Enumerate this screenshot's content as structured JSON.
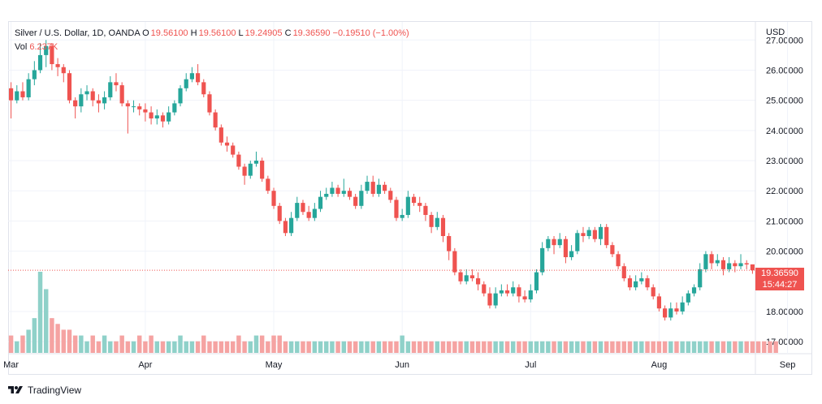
{
  "legend": {
    "symbol": "Silver / U.S. Dollar, 1D, OANDA",
    "o_label": "O",
    "o_value": "19.56100",
    "h_label": "H",
    "h_value": "19.56100",
    "l_label": "L",
    "l_value": "19.24905",
    "c_label": "C",
    "c_value": "19.36590",
    "change": "−0.19510 (−1.00%)",
    "vol_label": "Vol",
    "vol_value": "6.237K"
  },
  "price_tag": {
    "price": "19.36590",
    "countdown": "15:44:27"
  },
  "footer": {
    "brand": "TradingView"
  },
  "colors": {
    "up": "#26a69a",
    "down": "#ef5350",
    "vol_up": "#8fd1c9",
    "vol_down": "#f5a3a2",
    "grid": "#f0f3fa"
  },
  "chart_data": {
    "type": "candlestick",
    "currency": "USD",
    "y_ticks": [
      "27.00000",
      "26.00000",
      "25.00000",
      "24.00000",
      "23.00000",
      "22.00000",
      "21.00000",
      "20.00000",
      "18.00000",
      "17.00000"
    ],
    "ylim": [
      16.6,
      27.6
    ],
    "x_ticks": [
      {
        "label": "Mar",
        "index": 0
      },
      {
        "label": "Apr",
        "index": 23
      },
      {
        "label": "May",
        "index": 45
      },
      {
        "label": "Jun",
        "index": 67
      },
      {
        "label": "Jul",
        "index": 89
      },
      {
        "label": "Aug",
        "index": 111
      },
      {
        "label": "Sep",
        "index": 133
      }
    ],
    "last_price": 19.3659,
    "candles": [
      [
        25.4,
        25.0,
        25.6,
        24.4
      ],
      [
        25.0,
        25.3,
        25.5,
        24.9
      ],
      [
        25.3,
        25.1,
        25.6,
        25.0
      ],
      [
        25.1,
        25.7,
        25.9,
        25.0
      ],
      [
        25.7,
        26.0,
        26.3,
        25.5
      ],
      [
        26.0,
        26.5,
        26.9,
        25.9
      ],
      [
        26.5,
        26.8,
        27.0,
        26.1
      ],
      [
        26.8,
        26.2,
        26.9,
        26.0
      ],
      [
        26.2,
        26.1,
        26.4,
        25.8
      ],
      [
        26.1,
        25.9,
        26.2,
        25.6
      ],
      [
        25.9,
        25.0,
        26.0,
        24.9
      ],
      [
        25.0,
        24.8,
        25.1,
        24.4
      ],
      [
        24.8,
        25.2,
        25.4,
        24.6
      ],
      [
        25.2,
        25.3,
        25.5,
        25.0
      ],
      [
        25.3,
        25.0,
        25.4,
        24.8
      ],
      [
        25.0,
        24.9,
        25.2,
        24.6
      ],
      [
        24.9,
        25.1,
        25.3,
        24.7
      ],
      [
        25.1,
        25.6,
        25.8,
        25.0
      ],
      [
        25.6,
        25.5,
        25.9,
        25.3
      ],
      [
        25.5,
        24.9,
        25.6,
        24.8
      ],
      [
        24.9,
        24.8,
        25.0,
        23.9
      ],
      [
        24.8,
        24.8,
        25.0,
        24.6
      ],
      [
        24.8,
        24.7,
        24.9,
        24.5
      ],
      [
        24.7,
        24.6,
        24.9,
        24.3
      ],
      [
        24.6,
        24.4,
        24.8,
        24.2
      ],
      [
        24.4,
        24.5,
        24.7,
        24.2
      ],
      [
        24.5,
        24.3,
        24.6,
        24.1
      ],
      [
        24.3,
        24.6,
        24.8,
        24.2
      ],
      [
        24.6,
        24.9,
        25.0,
        24.5
      ],
      [
        24.9,
        25.4,
        25.5,
        24.8
      ],
      [
        25.4,
        25.7,
        25.9,
        25.3
      ],
      [
        25.7,
        25.9,
        26.1,
        25.6
      ],
      [
        25.9,
        25.6,
        26.2,
        25.5
      ],
      [
        25.6,
        25.2,
        25.7,
        25.1
      ],
      [
        25.2,
        24.6,
        25.3,
        24.5
      ],
      [
        24.6,
        24.1,
        24.7,
        24.0
      ],
      [
        24.1,
        23.6,
        24.2,
        23.5
      ],
      [
        23.6,
        23.5,
        23.8,
        23.3
      ],
      [
        23.5,
        23.2,
        23.6,
        23.1
      ],
      [
        23.2,
        22.8,
        23.3,
        22.7
      ],
      [
        22.8,
        22.5,
        22.9,
        22.2
      ],
      [
        22.5,
        22.9,
        23.0,
        22.4
      ],
      [
        22.9,
        23.0,
        23.3,
        22.8
      ],
      [
        23.0,
        22.4,
        23.1,
        22.3
      ],
      [
        22.4,
        22.0,
        22.5,
        21.9
      ],
      [
        22.0,
        21.5,
        22.1,
        21.4
      ],
      [
        21.5,
        21.0,
        21.6,
        20.9
      ],
      [
        21.0,
        20.6,
        21.1,
        20.5
      ],
      [
        20.6,
        21.1,
        21.3,
        20.5
      ],
      [
        21.1,
        21.6,
        21.8,
        21.0
      ],
      [
        21.6,
        21.3,
        21.7,
        21.2
      ],
      [
        21.3,
        21.1,
        21.5,
        21.0
      ],
      [
        21.1,
        21.4,
        21.6,
        21.0
      ],
      [
        21.4,
        21.8,
        22.0,
        21.3
      ],
      [
        21.8,
        21.9,
        22.1,
        21.7
      ],
      [
        21.9,
        22.1,
        22.3,
        21.8
      ],
      [
        22.1,
        21.9,
        22.2,
        21.8
      ],
      [
        21.9,
        22.0,
        22.4,
        21.8
      ],
      [
        22.0,
        21.8,
        22.1,
        21.7
      ],
      [
        21.8,
        21.5,
        21.9,
        21.4
      ],
      [
        21.5,
        22.0,
        22.2,
        21.4
      ],
      [
        22.0,
        22.3,
        22.5,
        21.9
      ],
      [
        22.3,
        21.9,
        22.5,
        21.8
      ],
      [
        21.9,
        22.2,
        22.4,
        21.8
      ],
      [
        22.2,
        22.0,
        22.3,
        21.9
      ],
      [
        22.0,
        21.7,
        22.1,
        21.6
      ],
      [
        21.7,
        21.1,
        21.8,
        21.0
      ],
      [
        21.1,
        21.2,
        21.4,
        21.0
      ],
      [
        21.2,
        21.8,
        22.0,
        21.1
      ],
      [
        21.8,
        21.6,
        21.9,
        21.5
      ],
      [
        21.6,
        21.5,
        21.8,
        21.3
      ],
      [
        21.5,
        21.2,
        21.6,
        21.0
      ],
      [
        21.2,
        20.8,
        21.3,
        20.6
      ],
      [
        20.8,
        21.1,
        21.3,
        20.7
      ],
      [
        21.1,
        20.5,
        21.2,
        20.3
      ],
      [
        20.5,
        20.0,
        20.6,
        19.7
      ],
      [
        20.0,
        19.3,
        20.1,
        19.2
      ],
      [
        19.3,
        19.0,
        19.4,
        18.9
      ],
      [
        19.0,
        19.2,
        19.4,
        18.9
      ],
      [
        19.2,
        19.1,
        19.4,
        19.0
      ],
      [
        19.1,
        18.9,
        19.3,
        18.7
      ],
      [
        18.9,
        18.6,
        19.0,
        18.5
      ],
      [
        18.6,
        18.2,
        18.8,
        18.1
      ],
      [
        18.2,
        18.6,
        18.8,
        18.1
      ],
      [
        18.6,
        18.7,
        18.9,
        18.5
      ],
      [
        18.7,
        18.6,
        18.9,
        18.5
      ],
      [
        18.6,
        18.8,
        19.0,
        18.5
      ],
      [
        18.8,
        18.5,
        18.9,
        18.3
      ],
      [
        18.5,
        18.4,
        18.7,
        18.3
      ],
      [
        18.4,
        18.7,
        18.9,
        18.3
      ],
      [
        18.7,
        19.3,
        19.4,
        18.6
      ],
      [
        19.3,
        20.1,
        20.3,
        19.2
      ],
      [
        20.1,
        20.4,
        20.5,
        20.0
      ],
      [
        20.4,
        20.2,
        20.5,
        19.9
      ],
      [
        20.2,
        20.4,
        20.6,
        20.1
      ],
      [
        20.4,
        19.8,
        20.5,
        19.6
      ],
      [
        19.8,
        20.0,
        20.2,
        19.7
      ],
      [
        20.0,
        20.6,
        20.7,
        19.9
      ],
      [
        20.6,
        20.5,
        20.8,
        20.3
      ],
      [
        20.5,
        20.7,
        20.8,
        20.4
      ],
      [
        20.7,
        20.4,
        20.8,
        20.3
      ],
      [
        20.4,
        20.8,
        20.9,
        20.2
      ],
      [
        20.8,
        20.2,
        20.9,
        20.1
      ],
      [
        20.2,
        19.9,
        20.3,
        19.8
      ],
      [
        19.9,
        19.5,
        20.0,
        19.4
      ],
      [
        19.5,
        19.1,
        19.6,
        19.0
      ],
      [
        19.1,
        18.8,
        19.2,
        18.7
      ],
      [
        18.8,
        19.0,
        19.2,
        18.7
      ],
      [
        19.0,
        19.1,
        19.3,
        18.9
      ],
      [
        19.1,
        18.8,
        19.2,
        18.7
      ],
      [
        18.8,
        18.5,
        18.9,
        18.4
      ],
      [
        18.5,
        18.1,
        18.6,
        18.0
      ],
      [
        18.1,
        17.8,
        18.2,
        17.7
      ],
      [
        17.8,
        18.1,
        18.3,
        17.7
      ],
      [
        18.1,
        18.0,
        18.3,
        17.9
      ],
      [
        18.0,
        18.3,
        18.5,
        17.9
      ],
      [
        18.3,
        18.6,
        18.7,
        18.2
      ],
      [
        18.6,
        18.8,
        18.9,
        18.5
      ],
      [
        18.8,
        19.4,
        19.6,
        18.7
      ],
      [
        19.4,
        19.9,
        20.0,
        19.3
      ],
      [
        19.9,
        19.6,
        20.0,
        19.4
      ],
      [
        19.6,
        19.7,
        19.9,
        19.5
      ],
      [
        19.7,
        19.4,
        19.8,
        19.2
      ],
      [
        19.4,
        19.6,
        19.8,
        19.3
      ],
      [
        19.6,
        19.5,
        19.7,
        19.3
      ],
      [
        19.5,
        19.6,
        19.9,
        19.4
      ],
      [
        19.6,
        19.56,
        19.7,
        19.4
      ],
      [
        19.561,
        19.3659,
        19.561,
        19.24905
      ]
    ],
    "volume_scale_max": 14,
    "volumes": [
      3,
      2,
      3,
      4,
      6,
      14,
      11,
      6,
      5,
      4,
      4,
      3,
      3,
      2,
      3,
      2,
      3,
      2,
      2,
      3,
      2,
      2,
      3,
      2,
      3,
      2,
      2,
      2,
      2,
      3,
      2,
      2,
      2,
      3,
      2,
      2,
      2,
      2,
      2,
      3,
      2,
      2,
      3,
      3,
      2,
      3,
      3,
      2,
      2,
      2,
      2,
      2,
      2,
      2,
      2,
      2,
      2,
      2,
      2,
      2,
      2,
      2,
      2,
      2,
      2,
      2,
      2,
      3,
      2,
      2,
      2,
      2,
      2,
      2,
      2,
      2,
      2,
      2,
      2,
      2,
      2,
      2,
      2,
      2,
      2,
      2,
      2,
      2,
      2,
      2,
      2,
      2,
      2,
      2,
      2,
      2,
      2,
      2,
      2,
      2,
      2,
      2,
      2,
      2,
      2,
      2,
      2,
      2,
      2,
      2,
      2,
      2,
      2,
      2,
      2,
      2,
      2,
      2,
      2,
      2,
      2,
      2,
      2,
      2,
      2,
      2,
      2,
      2,
      2,
      2,
      2,
      2
    ]
  }
}
